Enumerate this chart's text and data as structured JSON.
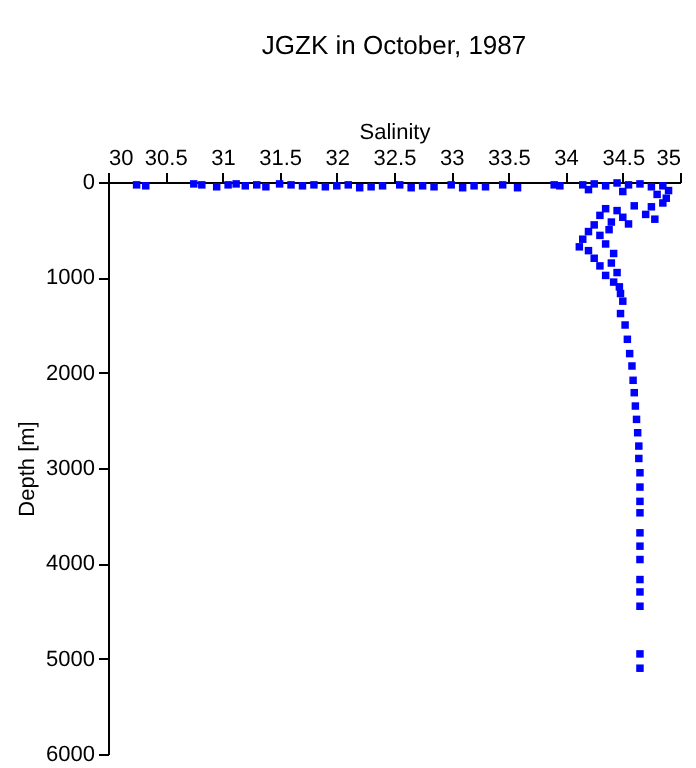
{
  "chart_data": {
    "type": "scatter",
    "title": "JGZK in October, 1987",
    "xlabel": "Salinity",
    "ylabel": "Depth [m]",
    "marker": "square",
    "grid": false,
    "xlim": [
      30,
      35
    ],
    "xticks": [
      30,
      30.5,
      31,
      31.5,
      32,
      32.5,
      33,
      33.5,
      34,
      34.5,
      35
    ],
    "ylim": [
      6000,
      0
    ],
    "yticks": [
      0,
      1000,
      2000,
      3000,
      4000,
      5000,
      6000
    ],
    "x": [
      30.25,
      30.33,
      30.75,
      30.82,
      30.95,
      31.05,
      31.12,
      31.2,
      31.3,
      31.38,
      31.5,
      31.6,
      31.7,
      31.8,
      31.9,
      32.0,
      32.1,
      32.2,
      32.3,
      32.4,
      32.55,
      32.65,
      32.75,
      32.85,
      33.0,
      33.1,
      33.2,
      33.3,
      33.45,
      33.58,
      33.9,
      33.95,
      34.15,
      34.25,
      34.35,
      34.45,
      34.55,
      34.65,
      34.75,
      34.85,
      34.9,
      34.2,
      34.5,
      34.8,
      34.88,
      34.85,
      34.75,
      34.6,
      34.45,
      34.35,
      34.3,
      34.5,
      34.7,
      34.78,
      34.4,
      34.55,
      34.25,
      34.2,
      34.15,
      34.3,
      34.38,
      34.12,
      34.2,
      34.35,
      34.42,
      34.25,
      34.3,
      34.4,
      34.45,
      34.35,
      34.42,
      34.47,
      34.48,
      34.5,
      34.48,
      34.52,
      34.54,
      34.56,
      34.58,
      34.59,
      34.6,
      34.61,
      34.62,
      34.63,
      34.64,
      34.64,
      34.65,
      34.65,
      34.65,
      34.65,
      34.65,
      34.65,
      34.65,
      34.65,
      34.65,
      34.65,
      34.65,
      34.65
    ],
    "series": [
      {
        "color": "#0000ff",
        "values": [
          30,
          40,
          20,
          30,
          50,
          30,
          20,
          40,
          30,
          50,
          20,
          30,
          40,
          30,
          50,
          40,
          30,
          60,
          50,
          40,
          30,
          60,
          40,
          50,
          30,
          60,
          40,
          50,
          30,
          60,
          30,
          40,
          30,
          20,
          40,
          10,
          30,
          20,
          50,
          40,
          90,
          80,
          100,
          130,
          170,
          220,
          260,
          250,
          300,
          280,
          350,
          370,
          340,
          390,
          420,
          440,
          450,
          520,
          600,
          560,
          500,
          680,
          720,
          650,
          750,
          800,
          880,
          850,
          950,
          980,
          1050,
          1100,
          1170,
          1250,
          1380,
          1500,
          1650,
          1800,
          1930,
          2080,
          2210,
          2350,
          2490,
          2630,
          2770,
          2900,
          3050,
          3200,
          3350,
          3470,
          3680,
          3820,
          3960,
          4170,
          4300,
          4450,
          4950,
          5100
        ]
      }
    ]
  }
}
